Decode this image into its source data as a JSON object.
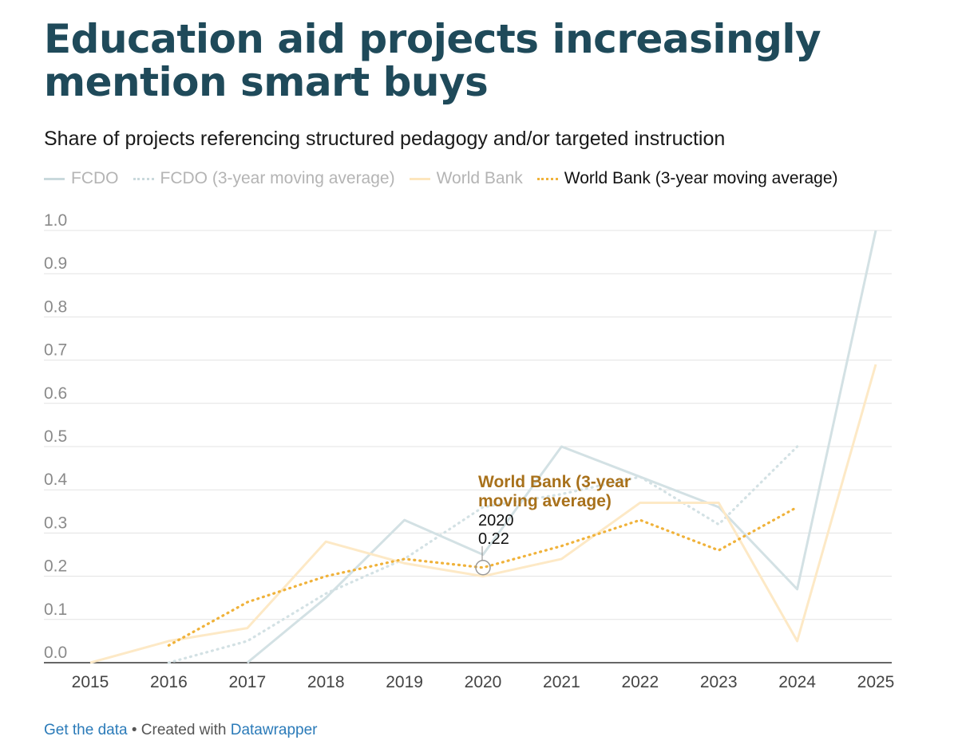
{
  "title": "Education aid projects increasingly mention smart buys",
  "subtitle": "Share of projects referencing structured pedagogy and/or targeted instruction",
  "legend": [
    {
      "label": "FCDO",
      "color": "#c9d9dc",
      "style": "solid",
      "text_color": "#b4b4b4"
    },
    {
      "label": "FCDO (3-year moving average)",
      "color": "#c9d9dc",
      "style": "dotted",
      "text_color": "#b4b4b4"
    },
    {
      "label": "World Bank",
      "color": "#fde6bd",
      "style": "solid",
      "text_color": "#b4b4b4"
    },
    {
      "label": "World Bank (3-year moving average)",
      "color": "#f0b23a",
      "style": "dotted",
      "text_color": "#111111"
    }
  ],
  "chart_data": {
    "type": "line",
    "x": [
      2015,
      2016,
      2017,
      2018,
      2019,
      2020,
      2021,
      2022,
      2023,
      2024,
      2025
    ],
    "ylim": [
      0,
      1.0
    ],
    "yticks": [
      "0.0",
      "0.1",
      "0.2",
      "0.3",
      "0.4",
      "0.5",
      "0.6",
      "0.7",
      "0.8",
      "0.9",
      "1.0"
    ],
    "xticks": [
      "2015",
      "2016",
      "2017",
      "2018",
      "2019",
      "2020",
      "2021",
      "2022",
      "2023",
      "2024",
      "2025"
    ],
    "series": [
      {
        "name": "FCDO",
        "color": "#d3e1e4",
        "style": "solid",
        "values": [
          null,
          null,
          0.0,
          0.15,
          0.33,
          0.25,
          0.5,
          0.43,
          0.36,
          0.17,
          1.0
        ]
      },
      {
        "name": "FCDO (3-year moving average)",
        "color": "#d3e1e4",
        "style": "dotted",
        "values": [
          null,
          0.0,
          0.05,
          0.16,
          0.24,
          0.36,
          0.39,
          0.43,
          0.32,
          0.5,
          null
        ]
      },
      {
        "name": "World Bank",
        "color": "#fde9c6",
        "style": "solid",
        "values": [
          0.0,
          0.05,
          0.08,
          0.28,
          0.23,
          0.2,
          0.24,
          0.37,
          0.37,
          0.05,
          0.69
        ]
      },
      {
        "name": "World Bank (3-year moving average)",
        "color": "#f0b23a",
        "style": "dotted",
        "values": [
          null,
          0.04,
          0.14,
          0.2,
          0.24,
          0.22,
          0.27,
          0.33,
          0.26,
          0.36,
          null
        ]
      }
    ],
    "tooltip": {
      "series_label_line1": "World Bank (3-year",
      "series_label_line2": "moving average)",
      "x_label": "2020",
      "y_label": "0.22",
      "x": 2020,
      "y": 0.22
    }
  },
  "footer": {
    "get_data": "Get the data",
    "separator": " • Created with ",
    "datawrapper": "Datawrapper"
  }
}
